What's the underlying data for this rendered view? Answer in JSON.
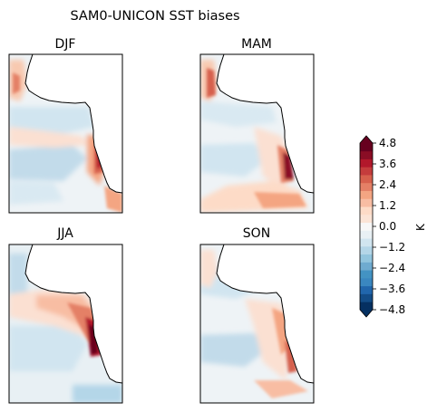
{
  "figure": {
    "title": "SAM0-UNICON SST biases"
  },
  "chart_data": [
    {
      "type": "heatmap",
      "title": "DJF",
      "season": "DJF",
      "description_values": {
        "warm_coastal_max": 4.8,
        "cold_offshore_min": -1.8
      }
    },
    {
      "type": "heatmap",
      "title": "MAM",
      "season": "MAM",
      "description_values": {
        "warm_coastal_max": 4.8,
        "cold_offshore_min": -1.6
      }
    },
    {
      "type": "heatmap",
      "title": "JJA",
      "season": "JJA",
      "description_values": {
        "warm_coastal_max": 4.8,
        "cold_offshore_min": -2.0
      }
    },
    {
      "type": "heatmap",
      "title": "SON",
      "season": "SON",
      "description_values": {
        "warm_coastal_max": 4.8,
        "cold_offshore_min": -1.8
      }
    }
  ],
  "colorbar": {
    "label": "K",
    "vmin": -4.8,
    "vmax": 4.8,
    "step": 0.6,
    "extend": "both",
    "ticks": [
      "4.8",
      "3.6",
      "2.4",
      "1.2",
      "0.0",
      "−1.2",
      "−2.4",
      "−3.6",
      "−4.8"
    ],
    "colors": [
      "#053061",
      "#134c87",
      "#2166ac",
      "#3a87c0",
      "#4393c3",
      "#6fabd0",
      "#92c5de",
      "#b4d6e8",
      "#d1e5f0",
      "#e8f0f4",
      "#f7f7f7",
      "#fbe4d6",
      "#fddbc7",
      "#f8bda3",
      "#f4a582",
      "#e48066",
      "#d6604d",
      "#c43c3c",
      "#b2182b",
      "#8a0d25",
      "#67001f"
    ]
  }
}
